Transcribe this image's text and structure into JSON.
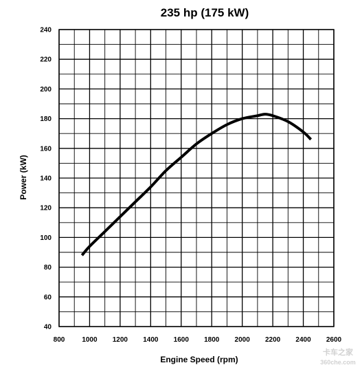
{
  "chart_data": {
    "type": "line",
    "title": "235 hp (175 kW)",
    "xlabel": "Engine Speed (rpm)",
    "ylabel": "Power (kW)",
    "xlim": [
      800,
      2600
    ],
    "ylim": [
      40,
      240
    ],
    "x_ticks": [
      800,
      1000,
      1200,
      1400,
      1600,
      1800,
      2000,
      2200,
      2400,
      2600
    ],
    "y_ticks": [
      40,
      60,
      80,
      100,
      120,
      140,
      160,
      180,
      200,
      220,
      240
    ],
    "x_minor_step": 100,
    "y_minor_step": 10,
    "grid": true,
    "legend": "none",
    "series": [
      {
        "x": [
          950,
          1000,
          1100,
          1200,
          1300,
          1400,
          1500,
          1600,
          1700,
          1800,
          1900,
          2000,
          2100,
          2150,
          2200,
          2300,
          2400,
          2450
        ],
        "y": [
          88,
          94,
          104,
          114,
          124,
          134,
          145,
          154,
          163,
          170,
          176,
          180,
          182,
          183,
          182,
          178,
          171,
          166
        ]
      }
    ],
    "line_color": "#000000",
    "grid_color": "#000000",
    "background": "#ffffff"
  },
  "watermark": {
    "line1": "卡车之家",
    "line2": "360che.com"
  }
}
